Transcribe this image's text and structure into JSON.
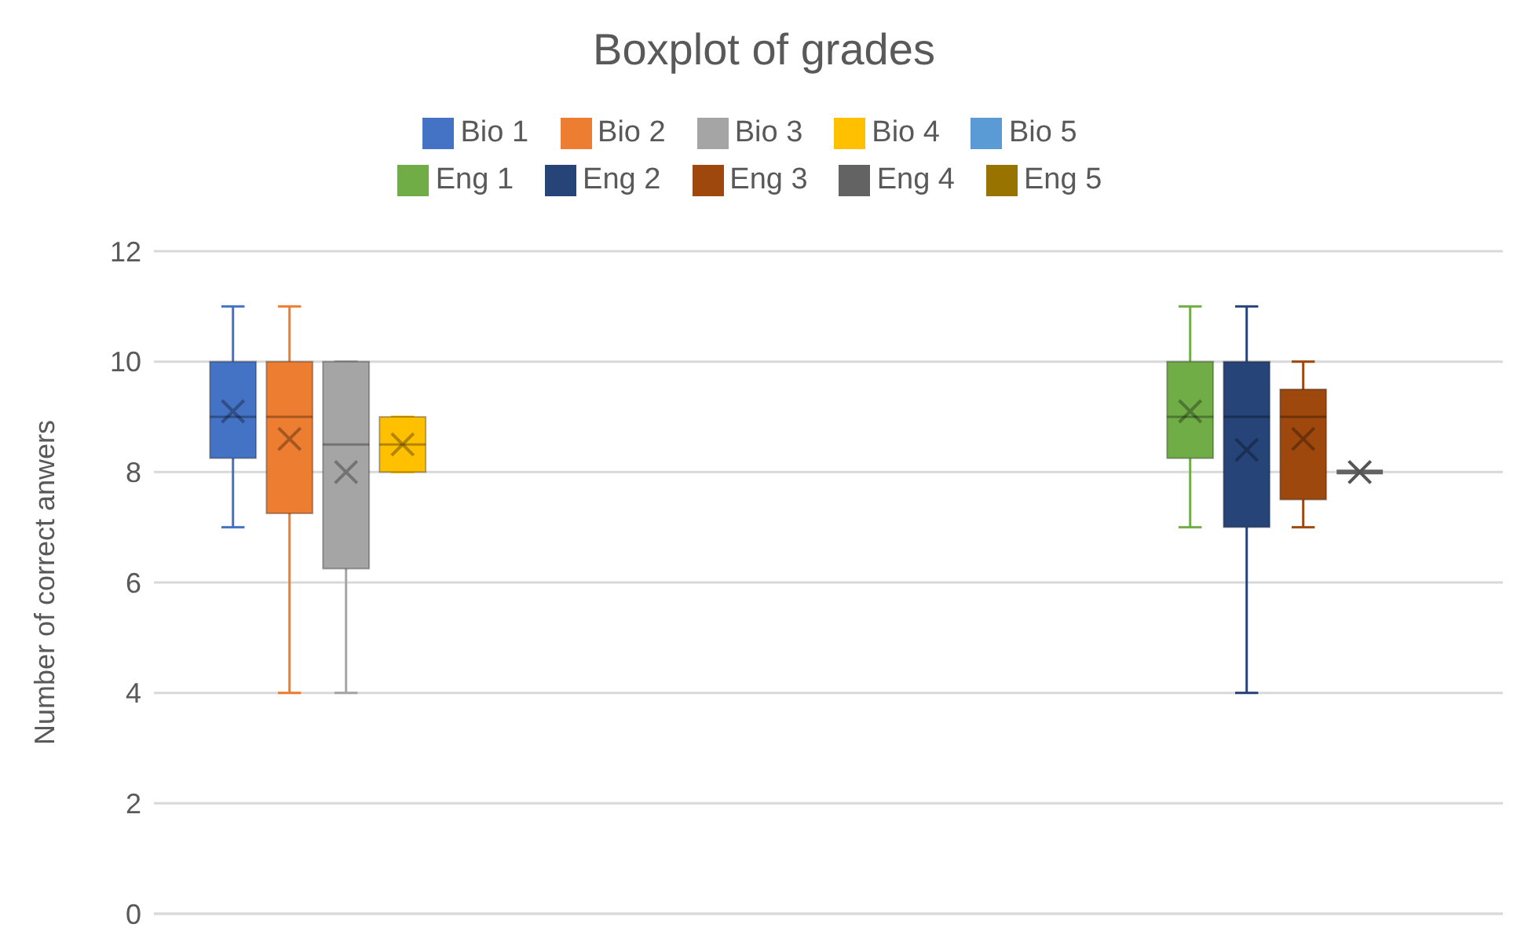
{
  "chart_data": {
    "type": "box",
    "title": "Boxplot of grades",
    "ylabel": "Number of correct anwers",
    "categories": [
      null,
      null
    ],
    "ylim": [
      0,
      12
    ],
    "yticks": [
      0,
      2,
      4,
      6,
      8,
      10,
      12
    ],
    "grid": "y",
    "legend": "top",
    "tick_labels": "y",
    "series": [
      {
        "name": "Bio 1",
        "color": "#4472c4",
        "boxes": [
          {
            "low": 7,
            "q1": 8.25,
            "median": 9,
            "q3": 10,
            "high": 11,
            "mean": 9.1
          },
          null
        ]
      },
      {
        "name": "Bio 2",
        "color": "#ed7d31",
        "boxes": [
          {
            "low": 4,
            "q1": 7.25,
            "median": 9,
            "q3": 10,
            "high": 11,
            "mean": 8.6
          },
          null
        ]
      },
      {
        "name": "Bio 3",
        "color": "#a5a5a5",
        "boxes": [
          {
            "low": 4,
            "q1": 6.25,
            "median": 8.5,
            "q3": 10,
            "high": 10,
            "mean": 8
          },
          null
        ]
      },
      {
        "name": "Bio 4",
        "color": "#ffc000",
        "boxes": [
          {
            "low": 8,
            "q1": 8,
            "median": 8.5,
            "q3": 9,
            "high": 9,
            "mean": 8.5
          },
          null
        ]
      },
      {
        "name": "Bio 5",
        "color": "#5b9bd5",
        "boxes": [
          null,
          null
        ]
      },
      {
        "name": "Eng 1",
        "color": "#70ad47",
        "boxes": [
          null,
          {
            "low": 7,
            "q1": 8.25,
            "median": 9,
            "q3": 10,
            "high": 11,
            "mean": 9.1
          }
        ]
      },
      {
        "name": "Eng 2",
        "color": "#264478",
        "boxes": [
          null,
          {
            "low": 4,
            "q1": 7,
            "median": 9,
            "q3": 10,
            "high": 11,
            "mean": 8.4
          }
        ]
      },
      {
        "name": "Eng 3",
        "color": "#9e480e",
        "boxes": [
          null,
          {
            "low": 7,
            "q1": 7.5,
            "median": 9,
            "q3": 9.5,
            "high": 10,
            "mean": 8.6
          }
        ]
      },
      {
        "name": "Eng 4",
        "color": "#636363",
        "boxes": [
          null,
          {
            "low": 8,
            "q1": 8,
            "median": 8,
            "q3": 8,
            "high": 8,
            "mean": 8
          }
        ]
      },
      {
        "name": "Eng 5",
        "color": "#997300",
        "boxes": [
          null,
          null
        ]
      }
    ]
  }
}
